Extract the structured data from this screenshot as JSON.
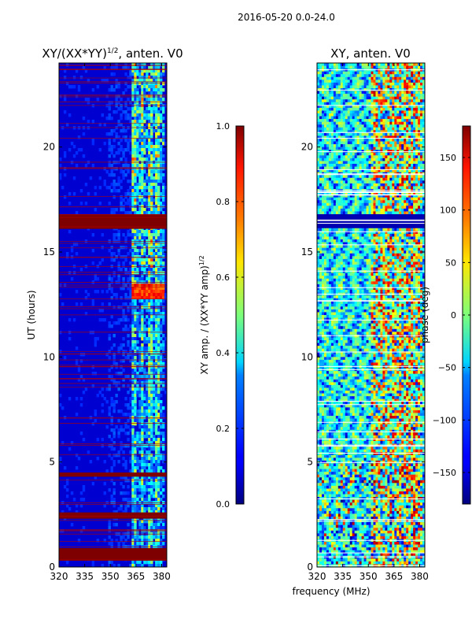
{
  "figure_title": "2016-05-20 0.0-24.0",
  "xlabel_shared": "frequency (MHz)",
  "chart_data": [
    {
      "type": "heatmap",
      "title_main": "XY/(XX*YY)",
      "title_sup": "1/2",
      "title_rest": ", anten. V0",
      "ylabel": "UT (hours)",
      "xlim": [
        320,
        383
      ],
      "ylim": [
        0,
        24
      ],
      "xticks": [
        "320",
        "335",
        "350",
        "365",
        "380"
      ],
      "xtick_values": [
        320,
        335,
        350,
        365,
        380
      ],
      "yticks": [
        "0",
        "5",
        "10",
        "15",
        "20"
      ],
      "ytick_values": [
        0,
        5,
        10,
        15,
        20
      ],
      "colorbar": {
        "label_main": "XY amp. / (XX*YY amp)",
        "label_sup": "1/2",
        "range": [
          0.0,
          1.0
        ],
        "ticks": [
          "0.0",
          "0.2",
          "0.4",
          "0.6",
          "0.8",
          "1.0"
        ],
        "tick_values": [
          0.0,
          0.2,
          0.4,
          0.6,
          0.8,
          1.0
        ]
      }
    },
    {
      "type": "heatmap",
      "title_main": "XY, anten. V0",
      "xlim": [
        320,
        383
      ],
      "ylim": [
        0,
        24
      ],
      "xticks": [
        "320",
        "335",
        "350",
        "365",
        "380"
      ],
      "xtick_values": [
        320,
        335,
        350,
        365,
        380
      ],
      "yticks": [
        "0",
        "5",
        "10",
        "15",
        "20"
      ],
      "ytick_values": [
        0,
        5,
        10,
        15,
        20
      ],
      "colorbar": {
        "label_main": "phase (deg)",
        "range": [
          -180,
          180
        ],
        "ticks": [
          "150",
          "100",
          "50",
          "0",
          "−50",
          "−100",
          "−150"
        ],
        "tick_values": [
          150,
          100,
          50,
          0,
          -50,
          -100,
          -150
        ]
      }
    }
  ]
}
